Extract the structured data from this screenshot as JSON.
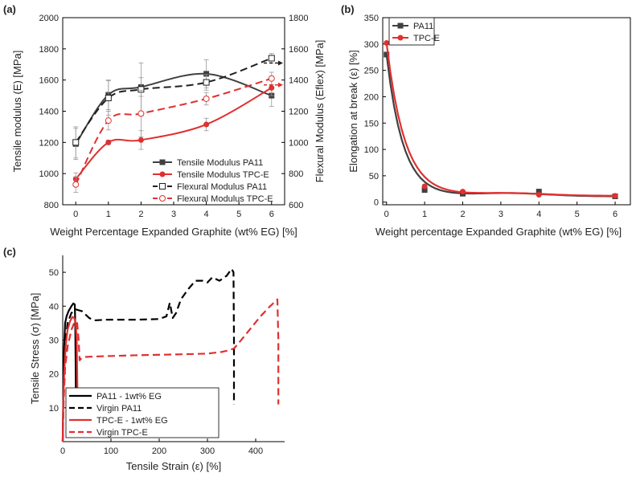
{
  "chart_data": [
    {
      "panel": "(a)",
      "type": "line",
      "xlabel": "Weight Percentage Expanded Graphite (wt% EG) [%]",
      "ylabel_left": "Tensile modulus (E) [MPa]",
      "ylabel_right": "Flexural Modulus (Eflex) [MPa]",
      "xlim": [
        -0.4,
        6.4
      ],
      "ylim_left": [
        800,
        2000
      ],
      "ylim_right": [
        600,
        1800
      ],
      "xticks": [
        0,
        1,
        2,
        3,
        4,
        5,
        6
      ],
      "yticks_left": [
        800,
        1000,
        1200,
        1400,
        1600,
        1800,
        2000
      ],
      "yticks_right": [
        600,
        800,
        1000,
        1200,
        1400,
        1600,
        1800
      ],
      "series": [
        {
          "name": "Tensile Modulus PA11",
          "axis": "left",
          "color": "#404040",
          "marker": "square",
          "dash": false,
          "x": [
            0,
            1,
            2,
            4,
            6
          ],
          "y": [
            1190,
            1505,
            1555,
            1640,
            1500
          ],
          "err": [
            100,
            95,
            60,
            90,
            70
          ]
        },
        {
          "name": "Tensile Modulus TPC-E",
          "axis": "left",
          "color": "#e03030",
          "marker": "circle",
          "dash": false,
          "x": [
            0,
            1,
            2,
            4,
            6
          ],
          "y": [
            965,
            1200,
            1215,
            1315,
            1550
          ],
          "err": [
            40,
            15,
            60,
            40,
            50
          ]
        },
        {
          "name": "Flexural Modulus PA11",
          "axis": "right",
          "color": "#202020",
          "marker": "open-square",
          "dash": true,
          "x": [
            0,
            1,
            2,
            4,
            6
          ],
          "y": [
            1000,
            1285,
            1340,
            1385,
            1540
          ],
          "err": [
            100,
            110,
            170,
            50,
            30
          ]
        },
        {
          "name": "Flexural Modulus TPC-E",
          "axis": "right",
          "color": "#e03030",
          "marker": "open-circle",
          "dash": true,
          "x": [
            0,
            1,
            2,
            4,
            6
          ],
          "y": [
            730,
            1140,
            1185,
            1280,
            1410
          ],
          "err": [
            50,
            60,
            150,
            40,
            40
          ]
        }
      ]
    },
    {
      "panel": "(b)",
      "type": "line",
      "xlabel": "Weight percentage Expanded Graphite (wt% EG) [%]",
      "ylabel": "Elongation at break (ε) [%]",
      "xlim": [
        -0.1,
        6.4
      ],
      "ylim": [
        -5,
        350
      ],
      "xticks": [
        0,
        1,
        2,
        3,
        4,
        5,
        6
      ],
      "yticks": [
        0,
        50,
        100,
        150,
        200,
        250,
        300,
        350
      ],
      "series": [
        {
          "name": "PA11",
          "color": "#404040",
          "marker": "square",
          "x": [
            0,
            1,
            2,
            4,
            6
          ],
          "y": [
            280,
            23,
            16,
            20,
            11
          ]
        },
        {
          "name": "TPC-E",
          "color": "#e03030",
          "marker": "circle",
          "x": [
            0,
            1,
            2,
            4,
            6
          ],
          "y": [
            302,
            30,
            20,
            14,
            12
          ]
        }
      ]
    },
    {
      "panel": "(c)",
      "type": "line",
      "xlabel": "Tensile Strain (ε) [%]",
      "ylabel": "Tensile Stress (σ) [MPa]",
      "xlim": [
        0,
        460
      ],
      "ylim": [
        0,
        55
      ],
      "xticks": [
        0,
        100,
        200,
        300,
        400
      ],
      "yticks": [
        10,
        20,
        30,
        40,
        50
      ],
      "series": [
        {
          "name": "PA11 - 1wt% EG",
          "color": "#000000",
          "dash": false,
          "x": [
            0,
            1,
            3,
            5,
            8,
            12,
            18,
            22,
            25,
            26,
            27,
            27.5
          ],
          "y": [
            0,
            12,
            28,
            35,
            37,
            38.5,
            40,
            40.8,
            40.5,
            35,
            20,
            9
          ]
        },
        {
          "name": "Virgin PA11",
          "color": "#000000",
          "dash": true,
          "x": [
            0,
            2,
            5,
            10,
            18,
            28,
            40,
            55,
            65,
            90,
            150,
            200,
            215,
            222,
            228,
            235,
            245,
            260,
            275,
            290,
            300,
            310,
            325,
            340,
            350,
            354,
            355,
            355
          ],
          "y": [
            0,
            15,
            28,
            35,
            38,
            39,
            38.5,
            36.5,
            35.8,
            36,
            36,
            36.2,
            37,
            41,
            36.5,
            38,
            42,
            45,
            47.5,
            47.5,
            47,
            48.5,
            47.5,
            49,
            51,
            50,
            30,
            11
          ]
        },
        {
          "name": "TPC-E - 1wt% EG",
          "color": "#e03030",
          "dash": false,
          "x": [
            0,
            1,
            3,
            6,
            10,
            15,
            20,
            24,
            27,
            29,
            30,
            31,
            32
          ],
          "y": [
            0,
            10,
            20,
            28,
            33,
            35.5,
            36.8,
            36.5,
            35,
            30,
            20,
            10,
            7
          ]
        },
        {
          "name": "Virgin TPC-E",
          "color": "#e03030",
          "dash": true,
          "x": [
            0,
            2,
            5,
            10,
            18,
            25,
            30,
            33,
            35,
            38,
            45,
            80,
            150,
            250,
            300,
            330,
            345,
            355,
            370,
            390,
            410,
            430,
            445,
            447,
            447
          ],
          "y": [
            0,
            12,
            22,
            28,
            33,
            35.5,
            35,
            30,
            24,
            24.5,
            25,
            25.2,
            25.5,
            25.8,
            26,
            26.5,
            27,
            27.5,
            30,
            33.5,
            37,
            40,
            42,
            30,
            11
          ]
        }
      ]
    }
  ]
}
